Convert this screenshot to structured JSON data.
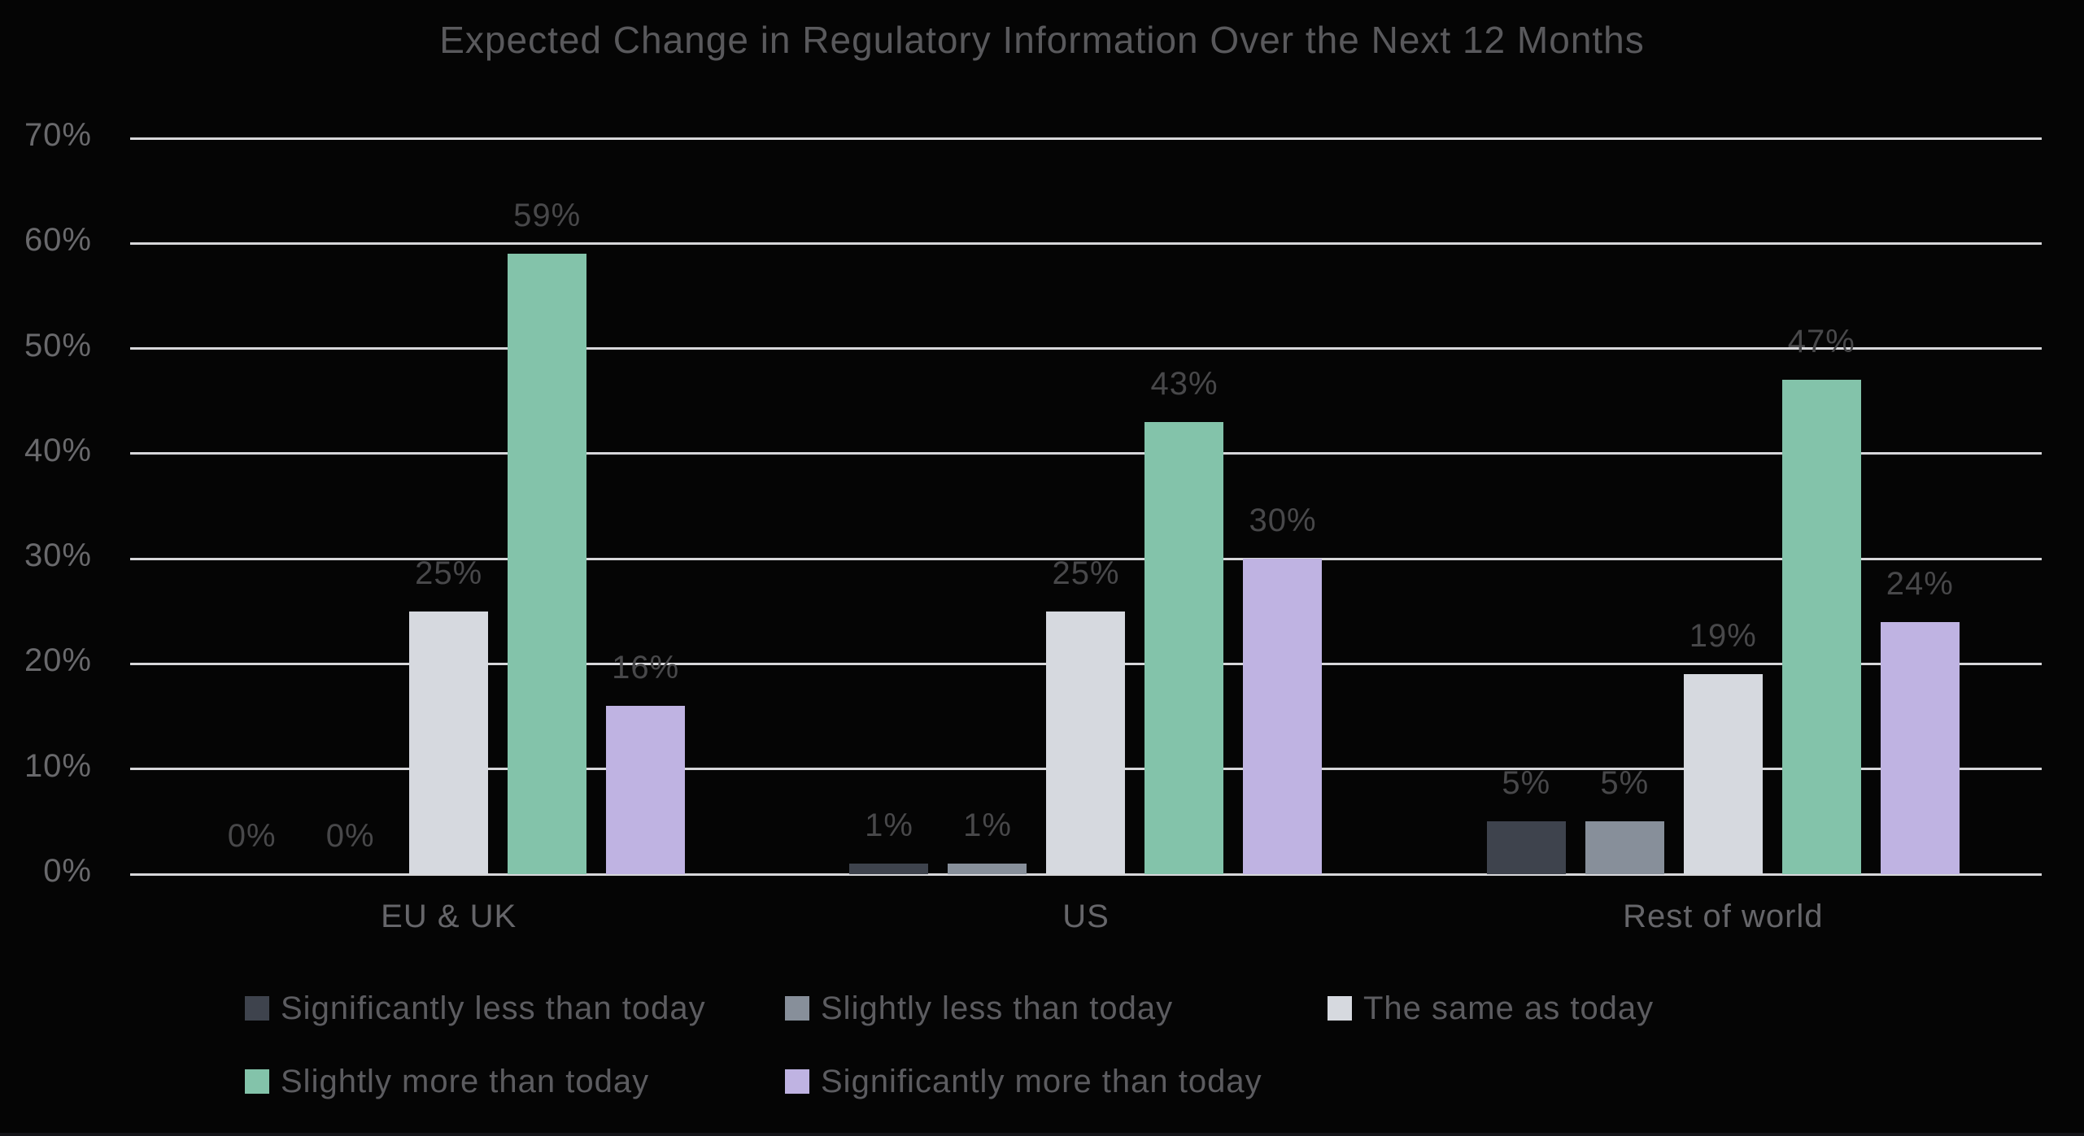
{
  "chart_data": {
    "type": "bar",
    "title": "Expected Change in Regulatory Information Over the Next 12 Months",
    "categories": [
      "EU & UK",
      "US",
      "Rest of world"
    ],
    "series": [
      {
        "name": "Significantly less than today",
        "color": "#3e434d",
        "values": [
          0,
          1,
          5
        ]
      },
      {
        "name": "Slightly less than today",
        "color": "#878f9a",
        "values": [
          0,
          1,
          5
        ]
      },
      {
        "name": "The same as today",
        "color": "#d6d9df",
        "values": [
          25,
          25,
          19
        ]
      },
      {
        "name": "Slightly more than today",
        "color": "#83c3aa",
        "values": [
          59,
          43,
          47
        ]
      },
      {
        "name": "Significantly more than today",
        "color": "#bfb3e2",
        "values": [
          16,
          30,
          24
        ]
      }
    ],
    "y_ticks": [
      "70%",
      "60%",
      "50%",
      "40%",
      "30%",
      "20%",
      "10%",
      "0%"
    ],
    "ylim": [
      0,
      70
    ],
    "value_suffix": "%",
    "grid": true,
    "legend_position": "bottom",
    "background_color": "#050505",
    "gridline_color": "#d7d7da"
  }
}
